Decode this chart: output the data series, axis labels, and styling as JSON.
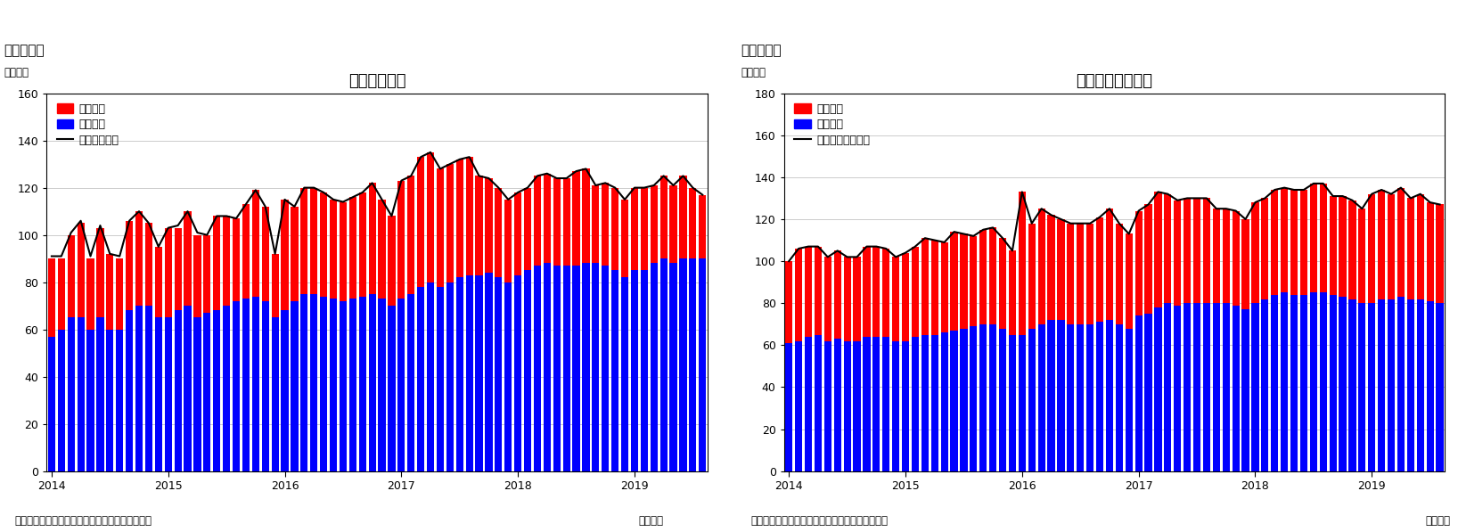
{
  "chart1": {
    "title": "住宅着工件数",
    "supertitle": "（図表１）",
    "ylabel": "（万件）",
    "footer_left": "（資料）センサス局よりニッセイ基礎研究所作成",
    "footer_right": "（月次）",
    "ylim": [
      0,
      160
    ],
    "yticks": [
      0,
      20,
      40,
      60,
      80,
      100,
      120,
      140,
      160
    ],
    "legend_line": "住宅着工件数",
    "legend_red": "集合住宅",
    "legend_blue": "一戸建て",
    "blue": [
      57,
      60,
      65,
      65,
      60,
      65,
      60,
      60,
      68,
      70,
      70,
      65,
      65,
      68,
      70,
      65,
      67,
      68,
      70,
      72,
      73,
      74,
      72,
      65,
      68,
      72,
      75,
      75,
      74,
      73,
      72,
      73,
      74,
      75,
      73,
      70,
      73,
      75,
      78,
      80,
      78,
      80,
      82,
      83,
      83,
      84,
      82,
      80,
      83,
      85,
      87,
      88,
      87,
      87,
      87,
      88,
      88,
      87,
      85,
      82,
      85,
      85,
      88,
      90,
      88,
      90,
      90,
      90
    ],
    "red": [
      33,
      30,
      35,
      40,
      30,
      38,
      32,
      30,
      38,
      40,
      35,
      30,
      38,
      35,
      40,
      35,
      33,
      40,
      38,
      35,
      40,
      45,
      40,
      27,
      47,
      40,
      45,
      45,
      44,
      42,
      42,
      43,
      44,
      47,
      42,
      38,
      50,
      50,
      55,
      55,
      50,
      50,
      50,
      50,
      42,
      40,
      38,
      35,
      35,
      35,
      38,
      38,
      37,
      37,
      40,
      40,
      33,
      35,
      35,
      33,
      35,
      35,
      33,
      35,
      33,
      35,
      30,
      27
    ],
    "line": [
      91,
      91,
      101,
      106,
      91,
      104,
      92,
      91,
      106,
      110,
      105,
      95,
      103,
      104,
      110,
      101,
      100,
      108,
      108,
      107,
      113,
      119,
      112,
      92,
      115,
      112,
      120,
      120,
      118,
      115,
      114,
      116,
      118,
      122,
      115,
      108,
      123,
      125,
      133,
      135,
      128,
      130,
      132,
      133,
      125,
      124,
      120,
      115,
      118,
      120,
      125,
      126,
      124,
      124,
      127,
      128,
      121,
      122,
      120,
      115,
      120,
      120,
      121,
      125,
      121,
      125,
      120,
      117
    ]
  },
  "chart2": {
    "title": "住宅着工許可件数",
    "supertitle": "（図表２）",
    "ylabel": "（万件）",
    "footer_left": "（資料）センサス局よりニッセイ基礎研究所作成",
    "footer_right": "（月次）",
    "ylim": [
      0,
      180
    ],
    "yticks": [
      0,
      20,
      40,
      60,
      80,
      100,
      120,
      140,
      160,
      180
    ],
    "legend_line": "住宅建築許可件数",
    "legend_red": "集合住宅",
    "legend_blue": "一戸建て",
    "blue": [
      61,
      62,
      64,
      65,
      62,
      63,
      62,
      62,
      64,
      64,
      64,
      62,
      62,
      64,
      65,
      65,
      66,
      67,
      68,
      69,
      70,
      70,
      68,
      65,
      65,
      68,
      70,
      72,
      72,
      70,
      70,
      70,
      71,
      72,
      70,
      68,
      74,
      75,
      78,
      80,
      79,
      80,
      80,
      80,
      80,
      80,
      79,
      77,
      80,
      82,
      84,
      85,
      84,
      84,
      85,
      85,
      84,
      83,
      82,
      80,
      80,
      82,
      82,
      83,
      82,
      82,
      81,
      80
    ],
    "red": [
      39,
      44,
      43,
      42,
      40,
      42,
      40,
      40,
      43,
      43,
      42,
      40,
      42,
      43,
      46,
      45,
      43,
      47,
      45,
      43,
      45,
      46,
      43,
      40,
      68,
      50,
      55,
      50,
      48,
      48,
      48,
      48,
      50,
      53,
      48,
      45,
      50,
      52,
      55,
      52,
      50,
      50,
      50,
      50,
      45,
      45,
      45,
      43,
      48,
      48,
      50,
      50,
      50,
      50,
      52,
      52,
      47,
      48,
      47,
      45,
      52,
      52,
      50,
      52,
      48,
      50,
      47,
      47
    ],
    "line": [
      100,
      106,
      107,
      107,
      102,
      105,
      102,
      102,
      107,
      107,
      106,
      102,
      104,
      107,
      111,
      110,
      109,
      114,
      113,
      112,
      115,
      116,
      111,
      105,
      133,
      118,
      125,
      122,
      120,
      118,
      118,
      118,
      121,
      125,
      118,
      113,
      124,
      127,
      133,
      132,
      129,
      130,
      130,
      130,
      125,
      125,
      124,
      120,
      128,
      130,
      134,
      135,
      134,
      134,
      137,
      137,
      131,
      131,
      129,
      125,
      132,
      134,
      132,
      135,
      130,
      132,
      128,
      127
    ]
  },
  "bar_color_blue": "#0000FF",
  "bar_color_red": "#FF0000",
  "line_color": "#000000",
  "bg_color": "#FFFFFF",
  "grid_color": "#CCCCCC",
  "title_fontsize": 13,
  "label_fontsize": 8.5,
  "tick_fontsize": 9,
  "legend_fontsize": 9,
  "supertitle_fontsize": 11,
  "bar_width": 0.75
}
